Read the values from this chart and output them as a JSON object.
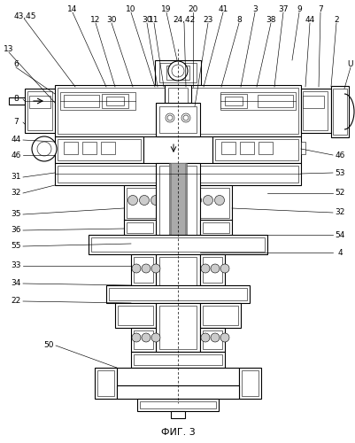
{
  "title": "ФИГ. 3",
  "bg_color": "#ffffff",
  "fig_w": 4.02,
  "fig_h": 5.0,
  "dpi": 100
}
